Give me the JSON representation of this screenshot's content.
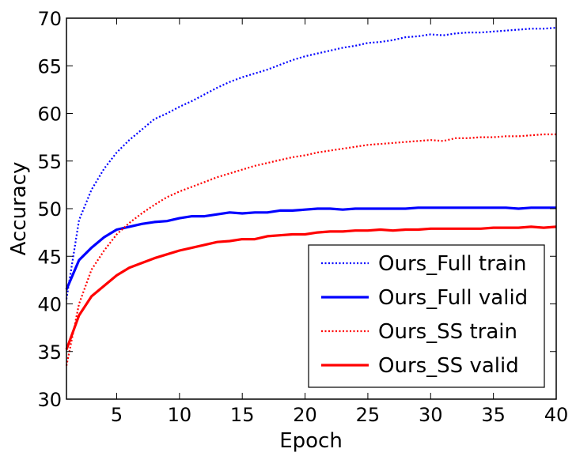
{
  "chart_data": {
    "type": "line",
    "xlabel": "Epoch",
    "ylabel": "Accuracy",
    "xlim": [
      1,
      40
    ],
    "ylim": [
      30,
      70
    ],
    "xticks": [
      5,
      10,
      15,
      20,
      25,
      30,
      35,
      40
    ],
    "yticks": [
      30,
      35,
      40,
      45,
      50,
      55,
      60,
      65,
      70
    ],
    "grid": false,
    "legend_position": "bottom-right",
    "x": [
      1,
      2,
      3,
      4,
      5,
      6,
      7,
      8,
      9,
      10,
      11,
      12,
      13,
      14,
      15,
      16,
      17,
      18,
      19,
      20,
      21,
      22,
      23,
      24,
      25,
      26,
      27,
      28,
      29,
      30,
      31,
      32,
      33,
      34,
      35,
      36,
      37,
      38,
      39,
      40
    ],
    "series": [
      {
        "name": "Ours_Full train",
        "color": "#0000ff",
        "style": "dotted",
        "values": [
          40.5,
          48.8,
          52.0,
          54.2,
          55.9,
          57.2,
          58.3,
          59.4,
          60.0,
          60.7,
          61.3,
          62.0,
          62.7,
          63.3,
          63.8,
          64.2,
          64.6,
          65.1,
          65.6,
          66.0,
          66.3,
          66.6,
          66.9,
          67.1,
          67.4,
          67.5,
          67.7,
          68.0,
          68.1,
          68.3,
          68.2,
          68.4,
          68.5,
          68.5,
          68.6,
          68.7,
          68.8,
          68.9,
          68.9,
          69.0
        ]
      },
      {
        "name": "Ours_Full valid",
        "color": "#0000ff",
        "style": "solid",
        "values": [
          41.5,
          44.6,
          45.9,
          47.0,
          47.8,
          48.1,
          48.4,
          48.6,
          48.7,
          49.0,
          49.2,
          49.2,
          49.4,
          49.6,
          49.5,
          49.6,
          49.6,
          49.8,
          49.8,
          49.9,
          50.0,
          50.0,
          49.9,
          50.0,
          50.0,
          50.0,
          50.0,
          50.0,
          50.1,
          50.1,
          50.1,
          50.1,
          50.1,
          50.1,
          50.1,
          50.1,
          50.0,
          50.1,
          50.1,
          50.1
        ]
      },
      {
        "name": "Ours_SS train",
        "color": "#ff0000",
        "style": "dotted",
        "values": [
          33.5,
          40.0,
          43.6,
          45.6,
          47.3,
          48.5,
          49.5,
          50.4,
          51.2,
          51.8,
          52.3,
          52.8,
          53.3,
          53.7,
          54.1,
          54.5,
          54.8,
          55.1,
          55.4,
          55.6,
          55.9,
          56.1,
          56.3,
          56.5,
          56.7,
          56.8,
          56.9,
          57.0,
          57.1,
          57.2,
          57.1,
          57.4,
          57.4,
          57.5,
          57.5,
          57.6,
          57.6,
          57.7,
          57.8,
          57.8
        ]
      },
      {
        "name": "Ours_SS valid",
        "color": "#ff0000",
        "style": "solid",
        "values": [
          35.2,
          38.8,
          40.8,
          41.9,
          43.0,
          43.8,
          44.3,
          44.8,
          45.2,
          45.6,
          45.9,
          46.2,
          46.5,
          46.6,
          46.8,
          46.8,
          47.1,
          47.2,
          47.3,
          47.3,
          47.5,
          47.6,
          47.6,
          47.7,
          47.7,
          47.8,
          47.7,
          47.8,
          47.8,
          47.9,
          47.9,
          47.9,
          47.9,
          47.9,
          48.0,
          48.0,
          48.0,
          48.1,
          48.0,
          48.1
        ]
      }
    ]
  }
}
